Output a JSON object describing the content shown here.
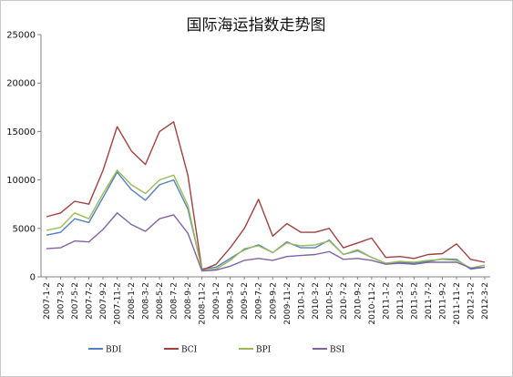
{
  "chart_data": {
    "type": "line",
    "title": "国际海运指数走势图",
    "xlabel": "",
    "ylabel": "",
    "ylim": [
      0,
      25000
    ],
    "yticks": [
      "0",
      "5000",
      "10000",
      "15000",
      "20000",
      "25000"
    ],
    "grid": false,
    "legend_position": "bottom",
    "x": [
      "2007-1-2",
      "2007-3-2",
      "2007-5-2",
      "2007-7-2",
      "2007-9-2",
      "2007-11-2",
      "2008-1-2",
      "2008-3-2",
      "2008-5-2",
      "2008-7-2",
      "2008-9-2",
      "2008-11-2",
      "2009-1-2",
      "2009-3-2",
      "2009-5-2",
      "2009-7-2",
      "2009-9-2",
      "2009-11-2",
      "2010-1-2",
      "2010-3-2",
      "2010-5-2",
      "2010-7-2",
      "2010-9-2",
      "2010-11-2",
      "2011-1-2",
      "2011-3-2",
      "2011-5-2",
      "2011-7-2",
      "2011-9-2",
      "2011-11-2",
      "2012-1-2",
      "2012-3-2"
    ],
    "series": [
      {
        "name": "BDI",
        "color": "#4f81bd",
        "values": [
          4300,
          4600,
          6000,
          5600,
          8200,
          10800,
          9000,
          7900,
          9500,
          10000,
          7000,
          800,
          1000,
          1900,
          2800,
          3300,
          2500,
          3600,
          3000,
          3000,
          3800,
          2300,
          2700,
          2000,
          1400,
          1500,
          1400,
          1600,
          1850,
          1800,
          800,
          1000
        ]
      },
      {
        "name": "BCI",
        "color": "#a0413e",
        "values": [
          6200,
          6600,
          7800,
          7500,
          11000,
          15500,
          13000,
          11600,
          15000,
          16000,
          10500,
          700,
          1300,
          3000,
          5000,
          8000,
          4200,
          5500,
          4600,
          4600,
          5000,
          3000,
          3500,
          4000,
          2000,
          2100,
          1900,
          2300,
          2400,
          3400,
          1800,
          1500
        ]
      },
      {
        "name": "BPI",
        "color": "#9bbb59",
        "values": [
          4800,
          5100,
          6600,
          6000,
          8600,
          11000,
          9500,
          8600,
          10000,
          10500,
          7400,
          650,
          800,
          1700,
          2900,
          3200,
          2500,
          3500,
          3200,
          3300,
          3700,
          2300,
          2800,
          2000,
          1400,
          1600,
          1500,
          1700,
          1800,
          1700,
          900,
          1200
        ]
      },
      {
        "name": "BSI",
        "color": "#8064a2",
        "values": [
          2900,
          3000,
          3700,
          3600,
          4900,
          6600,
          5400,
          4700,
          6000,
          6400,
          4500,
          600,
          700,
          1100,
          1700,
          1900,
          1700,
          2100,
          2200,
          2300,
          2600,
          1800,
          1900,
          1700,
          1300,
          1400,
          1300,
          1500,
          1500,
          1500,
          900,
          1000
        ]
      }
    ]
  }
}
